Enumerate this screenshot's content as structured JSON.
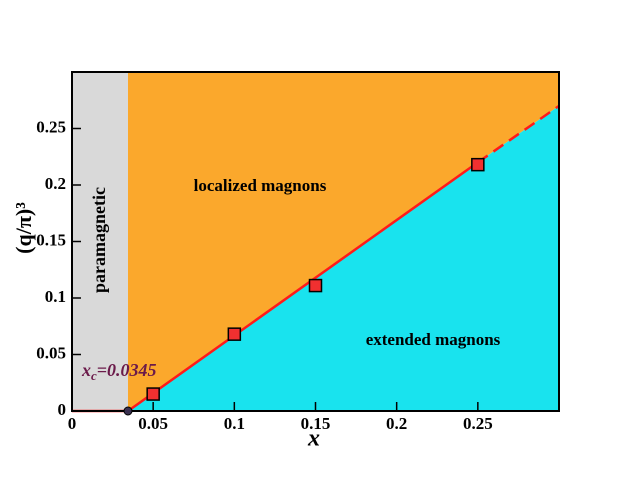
{
  "chart_data": {
    "type": "phase_diagram",
    "xlabel": "x",
    "ylabel": "(q/π)³",
    "xlim": [
      0,
      0.3
    ],
    "ylim": [
      0,
      0.3
    ],
    "xticks": [
      0,
      0.05,
      0.1,
      0.15,
      0.2,
      0.25
    ],
    "yticks": [
      0,
      0.05,
      0.1,
      0.15,
      0.2,
      0.25
    ],
    "regions": {
      "paramagnetic": {
        "label": "paramagnetic",
        "color": "#d9d9d9"
      },
      "localized": {
        "label": "localized magnons",
        "color": "#fba82c"
      },
      "extended": {
        "label": "extended magnons",
        "color": "#19e3ee"
      }
    },
    "boundary": {
      "color": "#ff1a1a",
      "x": [
        0,
        0.0345,
        0.25
      ],
      "values": [
        0,
        0,
        0.22
      ]
    },
    "extrapolation": {
      "color": "#ff1a1a",
      "x": [
        0.25,
        0.3
      ],
      "values": [
        0.22,
        0.27
      ]
    },
    "points": {
      "color": "#f03030",
      "x": [
        0.05,
        0.1,
        0.15,
        0.25
      ],
      "values": [
        0.015,
        0.068,
        0.111,
        0.218
      ]
    },
    "critical_point": {
      "x": 0.0345,
      "y": 0,
      "color": "#3a3050"
    },
    "annotation": {
      "base": "x",
      "sub": "c",
      "rest": "=0.0345",
      "color": "#6b1a4a"
    }
  }
}
